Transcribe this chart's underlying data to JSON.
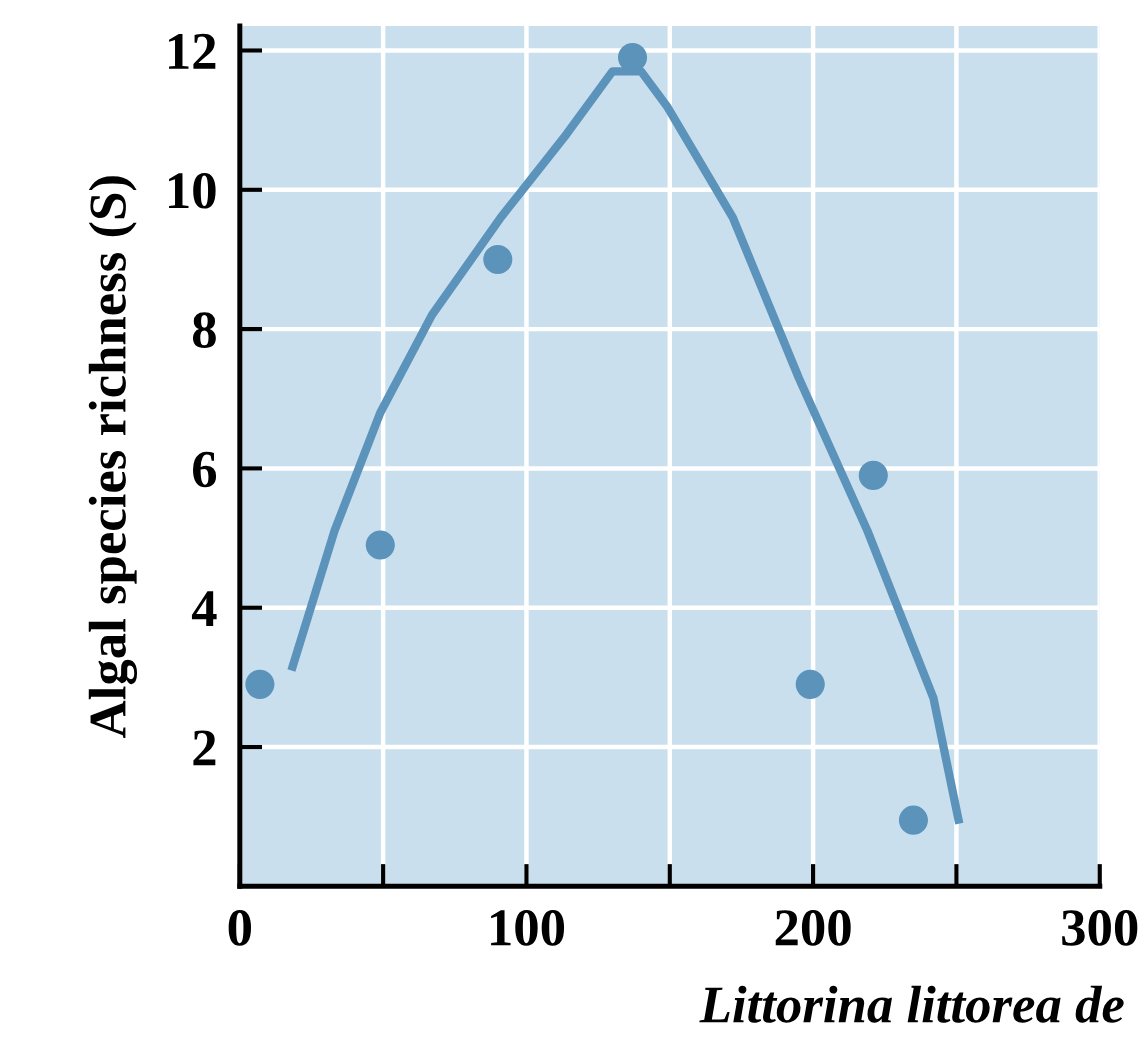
{
  "chart_data": {
    "type": "scatter",
    "xlabel": "Littorina littorea de",
    "ylabel": "Algal species richness (S)",
    "xlim": [
      0,
      300
    ],
    "ylim": [
      0,
      12.35
    ],
    "xticks": [
      0,
      {
        "value": 50,
        "label": null
      },
      100,
      {
        "value": 150,
        "label": null
      },
      200,
      {
        "value": 250,
        "label": null
      },
      300
    ],
    "yticks": [
      2,
      4,
      6,
      8,
      10,
      12
    ],
    "grid": true,
    "marker": "circle",
    "series": [
      {
        "color": "#5b93bb",
        "x": [
          7,
          49,
          90,
          137,
          199,
          221,
          235
        ],
        "values": [
          2.9,
          4.9,
          9,
          11.9,
          2.9,
          5.9,
          0.95
        ]
      },
      {
        "type": "line",
        "color": "#5b93bb",
        "marker": "none",
        "line_style": "solid",
        "x": [
          18,
          33,
          49,
          67,
          91,
          114,
          130,
          140,
          149,
          172,
          195,
          219,
          242,
          251
        ],
        "values": [
          3.1,
          5.1,
          6.8,
          8.2,
          9.6,
          10.8,
          11.7,
          11.7,
          11.2,
          9.6,
          7.3,
          5.1,
          2.7,
          0.9
        ]
      }
    ]
  }
}
